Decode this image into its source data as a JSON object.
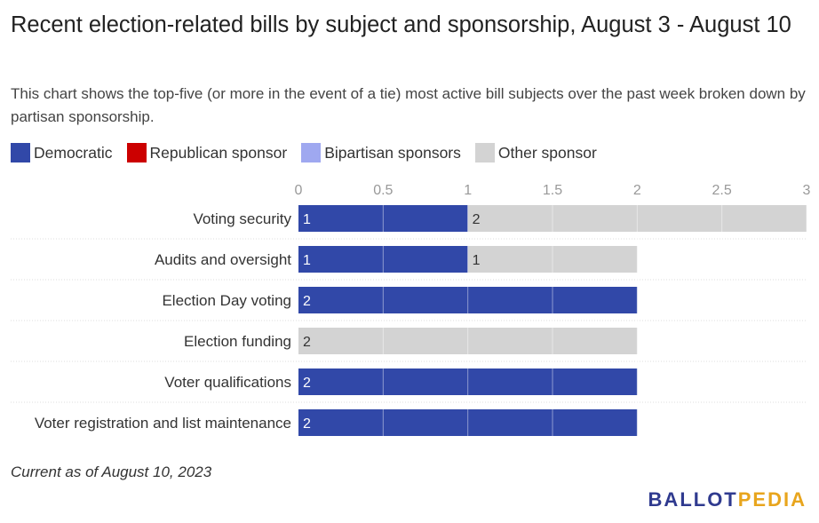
{
  "title": "Recent election-related bills by subject and sponsorship, August 3 - August 10",
  "subtitle": "This chart shows the top-five (or more in the event of a tie) most active bill subjects over the past week broken down by partisan sponsorship.",
  "legend": [
    {
      "label": "Democratic",
      "color": "#3148a8"
    },
    {
      "label": "Republican sponsor",
      "color": "#cc0000"
    },
    {
      "label": "Bipartisan sponsors",
      "color": "#9fa8f0"
    },
    {
      "label": "Other sponsor",
      "color": "#d3d3d3"
    }
  ],
  "footnote": "Current as of August 10, 2023",
  "brand": {
    "part1": "BALLOT",
    "part2": "PEDIA"
  },
  "chart_data": {
    "type": "bar",
    "orientation": "horizontal",
    "stacked": true,
    "categories": [
      "Voting security",
      "Audits and oversight",
      "Election Day voting",
      "Election funding",
      "Voter qualifications",
      "Voter registration and list maintenance"
    ],
    "series": [
      {
        "name": "Democratic",
        "color": "#3148a8",
        "label_color": "#ffffff",
        "values": [
          1,
          1,
          2,
          0,
          2,
          2
        ]
      },
      {
        "name": "Republican sponsor",
        "color": "#cc0000",
        "label_color": "#ffffff",
        "values": [
          0,
          0,
          0,
          0,
          0,
          0
        ]
      },
      {
        "name": "Bipartisan sponsors",
        "color": "#9fa8f0",
        "label_color": "#333333",
        "values": [
          0,
          0,
          0,
          0,
          0,
          0
        ]
      },
      {
        "name": "Other sponsor",
        "color": "#d3d3d3",
        "label_color": "#333333",
        "values": [
          2,
          1,
          0,
          2,
          0,
          0
        ]
      }
    ],
    "xlim": [
      0,
      3
    ],
    "xticks": [
      "0",
      "0.5",
      "1",
      "1.5",
      "2",
      "2.5",
      "3"
    ],
    "grid": true,
    "legend_position": "top-left"
  }
}
